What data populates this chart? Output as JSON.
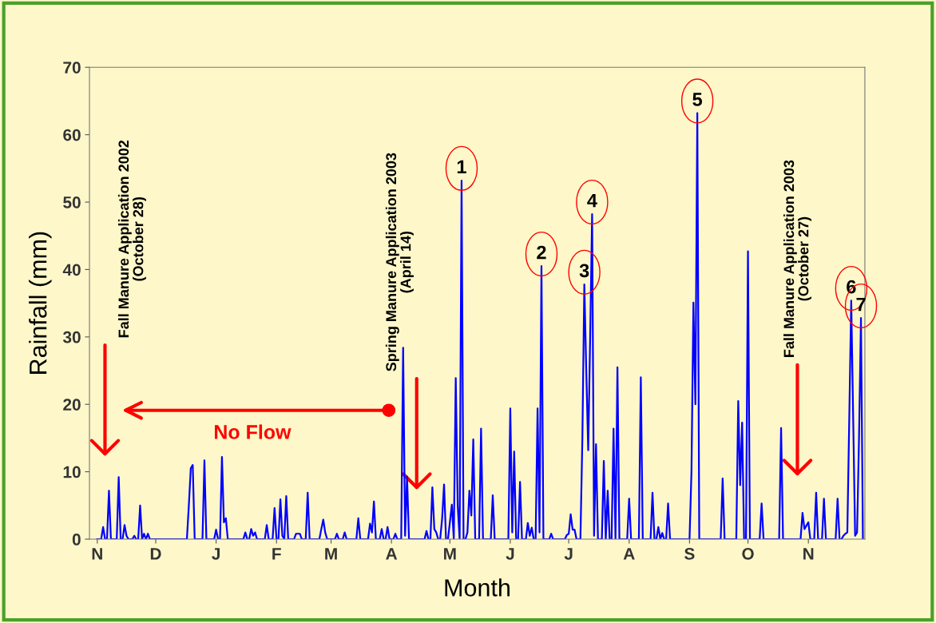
{
  "chart_data": {
    "type": "line",
    "xlabel": "Month",
    "ylabel": "Rainfall (mm)",
    "categories": [
      "N",
      null,
      null,
      null,
      null,
      null,
      null,
      null,
      null,
      null,
      null,
      null,
      null,
      null,
      null,
      null,
      null,
      null,
      null,
      null,
      null,
      null,
      null,
      null,
      null,
      null,
      null,
      null,
      null,
      null,
      "D",
      null,
      null,
      null,
      null,
      null,
      null,
      null,
      null,
      null,
      null,
      null,
      null,
      null,
      null,
      null,
      null,
      null,
      null,
      null,
      null,
      null,
      null,
      null,
      null,
      null,
      null,
      null,
      null,
      null,
      null,
      "J",
      null,
      null,
      null,
      null,
      null,
      null,
      null,
      null,
      null,
      null,
      null,
      null,
      null,
      null,
      null,
      null,
      null,
      null,
      null,
      null,
      null,
      null,
      null,
      null,
      null,
      null,
      null,
      null,
      null,
      null,
      "F",
      null,
      null,
      null,
      null,
      null,
      null,
      null,
      null,
      null,
      null,
      null,
      null,
      null,
      null,
      null,
      null,
      null,
      null,
      null,
      null,
      null,
      null,
      null,
      null,
      null,
      null,
      null,
      "M",
      null,
      null,
      null,
      null,
      null,
      null,
      null,
      null,
      null,
      null,
      null,
      null,
      null,
      null,
      null,
      null,
      null,
      null,
      null,
      null,
      null,
      null,
      null,
      null,
      null,
      null,
      null,
      null,
      null,
      null,
      "A",
      null,
      null,
      null,
      null,
      null,
      null,
      null,
      null,
      null,
      null,
      null,
      null,
      null,
      null,
      null,
      null,
      null,
      null,
      null,
      null,
      null,
      null,
      null,
      null,
      null,
      null,
      null,
      null,
      null,
      "M",
      null,
      null,
      null,
      null,
      null,
      null,
      null,
      null,
      null,
      null,
      null,
      null,
      null,
      null,
      null,
      null,
      null,
      null,
      null,
      null,
      null,
      null,
      null,
      null,
      null,
      null,
      null,
      null,
      null,
      null,
      "J",
      null,
      null,
      null,
      null,
      null,
      null,
      null,
      null,
      null,
      null,
      null,
      null,
      null,
      null,
      null,
      null,
      null,
      null,
      null,
      null,
      null,
      null,
      null,
      null,
      null,
      null,
      null,
      null,
      null,
      "J",
      null,
      null,
      null,
      null,
      null,
      null,
      null,
      null,
      null,
      null,
      null,
      null,
      null,
      null,
      null,
      null,
      null,
      null,
      null,
      null,
      null,
      null,
      null,
      null,
      null,
      null,
      null,
      null,
      null,
      null,
      "A",
      null,
      null,
      null,
      null,
      null,
      null,
      null,
      null,
      null,
      null,
      null,
      null,
      null,
      null,
      null,
      null,
      null,
      null,
      null,
      null,
      null,
      null,
      null,
      null,
      null,
      null,
      null,
      null,
      null,
      null,
      "S",
      null,
      null,
      null,
      null,
      null,
      null,
      null,
      null,
      null,
      null,
      null,
      null,
      null,
      null,
      null,
      null,
      null,
      null,
      null,
      null,
      null,
      null,
      null,
      null,
      null,
      null,
      null,
      null,
      null,
      "O",
      null,
      null,
      null,
      null,
      null,
      null,
      null,
      null,
      null,
      null,
      null,
      null,
      null,
      null,
      null,
      null,
      null,
      null,
      null,
      null,
      null,
      null,
      null,
      null,
      null,
      null,
      null,
      null,
      null,
      null,
      "N",
      null,
      null,
      null,
      null,
      null,
      null,
      null,
      null,
      null,
      null,
      null,
      null,
      null,
      null,
      null,
      null,
      null,
      null,
      null,
      null,
      null,
      null,
      null,
      null,
      null,
      null,
      null,
      null
    ],
    "ylim": [
      0,
      70
    ],
    "yticks": [
      0,
      10,
      20,
      30,
      40,
      50,
      60,
      70
    ],
    "grid": false,
    "legend": false,
    "marker": "none",
    "line_style": "solid",
    "series": [
      {
        "color": "#0000ff",
        "values": [
          0,
          0,
          0,
          1.8,
          0,
          0,
          7.2,
          0,
          0,
          0,
          0,
          9.2,
          0,
          0,
          2.1,
          0.5,
          0,
          0,
          0,
          0.5,
          0,
          0,
          5.0,
          0,
          0.8,
          0,
          0.8,
          0,
          0,
          0,
          0,
          0,
          0,
          0,
          0,
          0,
          0,
          0,
          0,
          0,
          0,
          0,
          0,
          0,
          0,
          0,
          0,
          5,
          10.5,
          11,
          0,
          0,
          0,
          0,
          0,
          11.7,
          0,
          0,
          0,
          0,
          0,
          1.4,
          0,
          0,
          12.2,
          2.5,
          3.1,
          0,
          0,
          0,
          0,
          0,
          0,
          0,
          0,
          0,
          1.0,
          0,
          0,
          1.5,
          0.5,
          1.0,
          0,
          0,
          0,
          0,
          0,
          2.1,
          0,
          0,
          0,
          4.6,
          0,
          0,
          5.9,
          0.5,
          0,
          6.4,
          0,
          0,
          0,
          0,
          0.8,
          0.8,
          0.8,
          0,
          0,
          0,
          6.9,
          0,
          0,
          0,
          0,
          0,
          0,
          1.5,
          2.9,
          1,
          0,
          0,
          0,
          0,
          0,
          0.8,
          0,
          0,
          0,
          1.0,
          0,
          0,
          0,
          0,
          0,
          0,
          3.1,
          0,
          0,
          0,
          0,
          0,
          2.3,
          1,
          5.6,
          0,
          0,
          0,
          1.5,
          0,
          0,
          1.8,
          0,
          0,
          0,
          0.8,
          0,
          0,
          0,
          28.4,
          0.5,
          9.3,
          0,
          0,
          0,
          0,
          0,
          0,
          0,
          0,
          0,
          1.2,
          0,
          0,
          7.7,
          1.5,
          1,
          0,
          0,
          3,
          8.1,
          0,
          0,
          2.5,
          5.1,
          0,
          23.9,
          5,
          0,
          53.2,
          0,
          0,
          1,
          7.2,
          3.5,
          14.8,
          0,
          0,
          0,
          16.4,
          0,
          0,
          0,
          0,
          0,
          6.5,
          0,
          0,
          0,
          0,
          0,
          0,
          0,
          0,
          19.4,
          1,
          13.0,
          0,
          0,
          8.5,
          0,
          0,
          0,
          2.4,
          0.5,
          1.7,
          0,
          0,
          19.4,
          1,
          40.5,
          0,
          0,
          0,
          0,
          0.8,
          0,
          0,
          0,
          0,
          0,
          0,
          0,
          0.6,
          0.8,
          3.7,
          1.4,
          1.4,
          0,
          0,
          0,
          15,
          37.8,
          25,
          13.2,
          30,
          48.2,
          0.5,
          14.1,
          0,
          0,
          0,
          11.6,
          0,
          7.2,
          0,
          0,
          16.4,
          0,
          25.5,
          0,
          0,
          0,
          0,
          0,
          6.0,
          0,
          0,
          0,
          0,
          0,
          24.0,
          0,
          0,
          0,
          0,
          0,
          6.9,
          0,
          0,
          1.8,
          0,
          0.9,
          0,
          0,
          5.3,
          0,
          0,
          0,
          0,
          0,
          0,
          0,
          0,
          0,
          0,
          0,
          10,
          35.1,
          20,
          63.2,
          0,
          0,
          0,
          0,
          0,
          0,
          0,
          0,
          0,
          0,
          0,
          0,
          9.0,
          0,
          0,
          0,
          0,
          0,
          0,
          0,
          20.5,
          8,
          17.3,
          0,
          0,
          42.7,
          0,
          0,
          0,
          0,
          0,
          0,
          5.3,
          0,
          0,
          0,
          0,
          0,
          0,
          0,
          0,
          0,
          16.5,
          0,
          0,
          0,
          0,
          0,
          0,
          0,
          0,
          0,
          0,
          3.9,
          1.5,
          2,
          2.5,
          0,
          0,
          0,
          6.9,
          0,
          0,
          0,
          6.0,
          0,
          0,
          0,
          0,
          0,
          0,
          6.0,
          0,
          0,
          0.5,
          0.8,
          1,
          18,
          35.4,
          18,
          0.5,
          1,
          15,
          32.8,
          0
        ]
      }
    ],
    "annotations": [
      "Fall Manure Application 2002\n(October 28)",
      "Spring Manure Application 2003\n(April 14)",
      "Fall Manure Application 2003\n(October 27)",
      "No Flow",
      {
        "text": "1",
        "y": 53.2
      },
      {
        "text": "2",
        "y": 40.5
      },
      {
        "text": "3",
        "y": 37.8
      },
      {
        "text": "4",
        "y": 48.2
      },
      {
        "text": "5",
        "y": 63.2
      },
      {
        "text": "6",
        "y": 35.4
      },
      {
        "text": "7",
        "y": 32.8
      }
    ]
  }
}
